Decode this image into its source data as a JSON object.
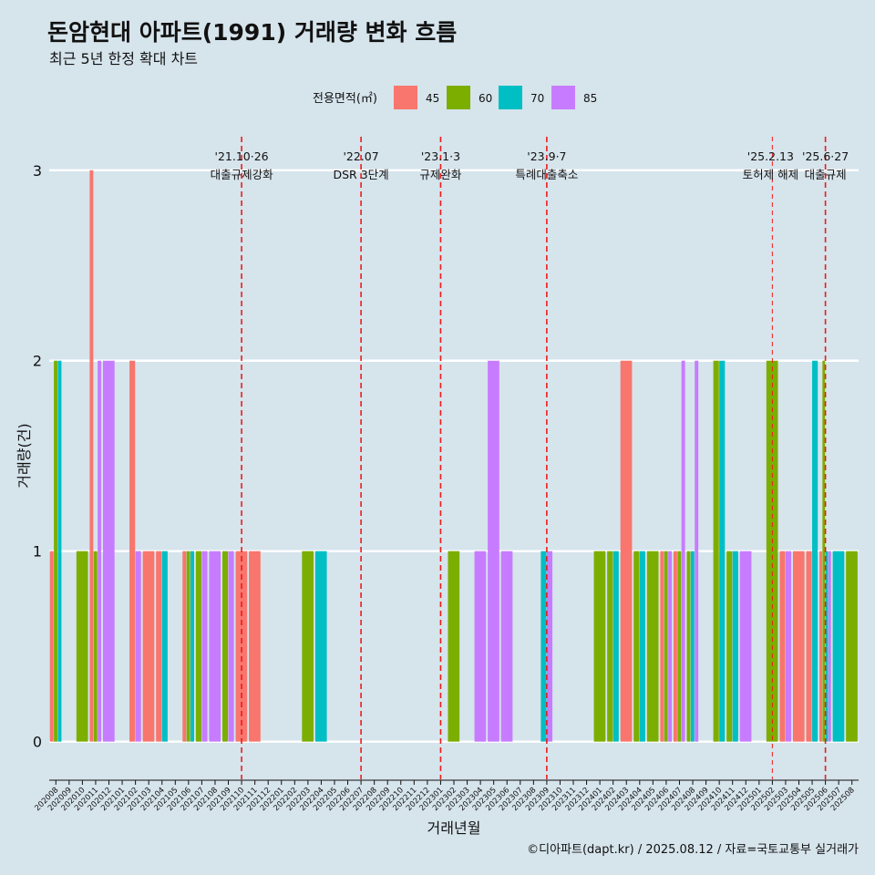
{
  "title": "돈암현대 아파트(1991) 거래량 변화 흐름",
  "subtitle": "최근 5년 한정 확대 차트",
  "caption": "©디아파트(dapt.kr) / 2025.08.12 / 자료=국토교통부 실거래가",
  "chart_data": {
    "type": "bar",
    "title": "돈암현대 아파트(1991) 거래량 변화 흐름",
    "subtitle": "최근 5년 한정 확대 차트",
    "xlabel": "거래년월",
    "ylabel": "거래량(건)",
    "ylim": [
      -0.15,
      3.2
    ],
    "yticks": [
      0,
      1,
      2,
      3
    ],
    "grid": "horizontal",
    "legend": {
      "title": "전용면적(㎡)",
      "position": "top"
    },
    "categories": [
      "202008",
      "202009",
      "202010",
      "202011",
      "202012",
      "202101",
      "202102",
      "202103",
      "202104",
      "202105",
      "202106",
      "202107",
      "202108",
      "202109",
      "202110",
      "202111",
      "202112",
      "202201",
      "202202",
      "202203",
      "202204",
      "202205",
      "202206",
      "202207",
      "202208",
      "202209",
      "202210",
      "202211",
      "202212",
      "202301",
      "202302",
      "202303",
      "202304",
      "202305",
      "202306",
      "202307",
      "202308",
      "202309",
      "202310",
      "202311",
      "202312",
      "202401",
      "202402",
      "202403",
      "202404",
      "202405",
      "202406",
      "202407",
      "202408",
      "202409",
      "202410",
      "202411",
      "202412",
      "202501",
      "202502",
      "202503",
      "202504",
      "202505",
      "202506",
      "202507",
      "202508"
    ],
    "series": [
      {
        "name": "45",
        "color": "#F8766D"
      },
      {
        "name": "60",
        "color": "#7CAE00"
      },
      {
        "name": "70",
        "color": "#00BFC4"
      },
      {
        "name": "85",
        "color": "#C77CFF"
      }
    ],
    "data": [
      {
        "month": "202008",
        "bars": [
          {
            "s": "45",
            "v": 1
          },
          {
            "s": "60",
            "v": 2
          },
          {
            "s": "70",
            "v": 2
          }
        ]
      },
      {
        "month": "202010",
        "bars": [
          {
            "s": "60",
            "v": 1
          }
        ]
      },
      {
        "month": "202011",
        "bars": [
          {
            "s": "45",
            "v": 3
          },
          {
            "s": "60",
            "v": 1
          },
          {
            "s": "85",
            "v": 2
          }
        ]
      },
      {
        "month": "202012",
        "bars": [
          {
            "s": "85",
            "v": 2
          }
        ]
      },
      {
        "month": "202102",
        "bars": [
          {
            "s": "45",
            "v": 2
          },
          {
            "s": "85",
            "v": 1
          }
        ]
      },
      {
        "month": "202103",
        "bars": [
          {
            "s": "45",
            "v": 1
          }
        ]
      },
      {
        "month": "202104",
        "bars": [
          {
            "s": "45",
            "v": 1
          },
          {
            "s": "70",
            "v": 1
          }
        ]
      },
      {
        "month": "202106",
        "bars": [
          {
            "s": "45",
            "v": 1
          },
          {
            "s": "60",
            "v": 1
          },
          {
            "s": "70",
            "v": 1
          }
        ]
      },
      {
        "month": "202107",
        "bars": [
          {
            "s": "60",
            "v": 1
          },
          {
            "s": "85",
            "v": 1
          }
        ]
      },
      {
        "month": "202108",
        "bars": [
          {
            "s": "85",
            "v": 1
          }
        ]
      },
      {
        "month": "202109",
        "bars": [
          {
            "s": "60",
            "v": 1
          },
          {
            "s": "85",
            "v": 1
          }
        ]
      },
      {
        "month": "202110",
        "bars": [
          {
            "s": "45",
            "v": 1
          }
        ]
      },
      {
        "month": "202111",
        "bars": [
          {
            "s": "45",
            "v": 1
          }
        ]
      },
      {
        "month": "202203",
        "bars": [
          {
            "s": "60",
            "v": 1
          }
        ]
      },
      {
        "month": "202204",
        "bars": [
          {
            "s": "70",
            "v": 1
          }
        ]
      },
      {
        "month": "202302",
        "bars": [
          {
            "s": "60",
            "v": 1
          }
        ]
      },
      {
        "month": "202304",
        "bars": [
          {
            "s": "85",
            "v": 1
          }
        ]
      },
      {
        "month": "202305",
        "bars": [
          {
            "s": "85",
            "v": 2
          }
        ]
      },
      {
        "month": "202306",
        "bars": [
          {
            "s": "85",
            "v": 1
          }
        ]
      },
      {
        "month": "202309",
        "bars": [
          {
            "s": "70",
            "v": 1
          },
          {
            "s": "85",
            "v": 1
          }
        ]
      },
      {
        "month": "202401",
        "bars": [
          {
            "s": "60",
            "v": 1
          }
        ]
      },
      {
        "month": "202402",
        "bars": [
          {
            "s": "60",
            "v": 1
          },
          {
            "s": "70",
            "v": 1
          }
        ]
      },
      {
        "month": "202403",
        "bars": [
          {
            "s": "45",
            "v": 2
          }
        ]
      },
      {
        "month": "202404",
        "bars": [
          {
            "s": "60",
            "v": 1
          },
          {
            "s": "70",
            "v": 1
          }
        ]
      },
      {
        "month": "202405",
        "bars": [
          {
            "s": "60",
            "v": 1
          }
        ]
      },
      {
        "month": "202406",
        "bars": [
          {
            "s": "45",
            "v": 1
          },
          {
            "s": "60",
            "v": 1
          },
          {
            "s": "85",
            "v": 1
          }
        ]
      },
      {
        "month": "202407",
        "bars": [
          {
            "s": "45",
            "v": 1
          },
          {
            "s": "60",
            "v": 1
          },
          {
            "s": "85",
            "v": 2
          }
        ]
      },
      {
        "month": "202408",
        "bars": [
          {
            "s": "60",
            "v": 1
          },
          {
            "s": "70",
            "v": 1
          },
          {
            "s": "85",
            "v": 2
          }
        ]
      },
      {
        "month": "202410",
        "bars": [
          {
            "s": "60",
            "v": 2
          },
          {
            "s": "70",
            "v": 2
          }
        ]
      },
      {
        "month": "202411",
        "bars": [
          {
            "s": "60",
            "v": 1
          },
          {
            "s": "70",
            "v": 1
          }
        ]
      },
      {
        "month": "202412",
        "bars": [
          {
            "s": "85",
            "v": 1
          }
        ]
      },
      {
        "month": "202502",
        "bars": [
          {
            "s": "60",
            "v": 2
          }
        ]
      },
      {
        "month": "202503",
        "bars": [
          {
            "s": "45",
            "v": 1
          },
          {
            "s": "85",
            "v": 1
          }
        ]
      },
      {
        "month": "202504",
        "bars": [
          {
            "s": "45",
            "v": 1
          }
        ]
      },
      {
        "month": "202505",
        "bars": [
          {
            "s": "45",
            "v": 1
          },
          {
            "s": "70",
            "v": 2
          }
        ]
      },
      {
        "month": "202506",
        "bars": [
          {
            "s": "45",
            "v": 1
          },
          {
            "s": "60",
            "v": 2
          },
          {
            "s": "70",
            "v": 1
          },
          {
            "s": "85",
            "v": 1
          }
        ]
      },
      {
        "month": "202507",
        "bars": [
          {
            "s": "70",
            "v": 1
          }
        ]
      },
      {
        "month": "202508",
        "bars": [
          {
            "s": "60",
            "v": 1
          }
        ]
      }
    ],
    "events": [
      {
        "date": "'21.10·26",
        "label": "대출규제강화",
        "x_month": 14.5,
        "thin": false
      },
      {
        "date": "'22.07",
        "label": "DSR 3단계",
        "x_month": 23.5,
        "thin": false
      },
      {
        "date": "'23.1·3",
        "label": "규제완화",
        "x_month": 29.5,
        "thin": false
      },
      {
        "date": "'23.9·7",
        "label": "특례대출축소",
        "x_month": 37.5,
        "thin": false
      },
      {
        "date": "'25.2.13",
        "label": "토허제 해제",
        "x_month": 54.5,
        "thin": true
      },
      {
        "date": "'25.6·27",
        "label": "대출규제",
        "x_month": 58.5,
        "thin": false
      }
    ]
  }
}
